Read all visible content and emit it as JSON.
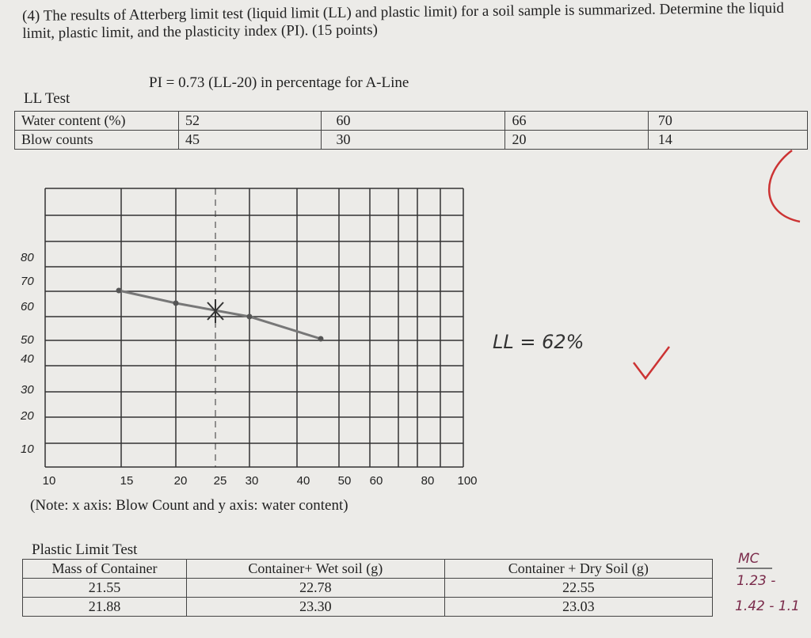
{
  "question": "(4) The results of Atterberg limit test (liquid limit (LL) and plastic limit) for a soil sample is summarized. Determine the liquid limit, plastic limit, and the plasticity index (PI). (15 points)",
  "formula": "PI = 0.73 (LL-20) in percentage for A-Line",
  "ll_test": {
    "title": "LL Test",
    "rows": [
      [
        "Water content (%)",
        "52",
        "60",
        "66",
        "70"
      ],
      [
        "Blow counts",
        "45",
        "30",
        "20",
        "14"
      ]
    ]
  },
  "graph": {
    "x_labels": [
      "10",
      "15",
      "20",
      "25",
      "30",
      "40",
      "50",
      "60",
      "80",
      "100"
    ],
    "y_labels": [
      "80",
      "70",
      "60",
      "50",
      "40",
      "30",
      "20",
      "10"
    ],
    "note": "(Note:  x axis: Blow Count and y axis: water content)",
    "answer": "LL = 62%"
  },
  "plastic_limit_test": {
    "title": "Plastic Limit Test",
    "header": [
      "Mass of Container",
      "Container+ Wet soil (g)",
      "Container + Dry Soil (g)"
    ],
    "rows": [
      [
        "21.55",
        "22.78",
        "22.55"
      ],
      [
        "21.88",
        "23.30",
        "23.03"
      ]
    ]
  },
  "margin_notes": [
    "MC",
    "1.23 -",
    "1.42 - 1.1"
  ]
}
